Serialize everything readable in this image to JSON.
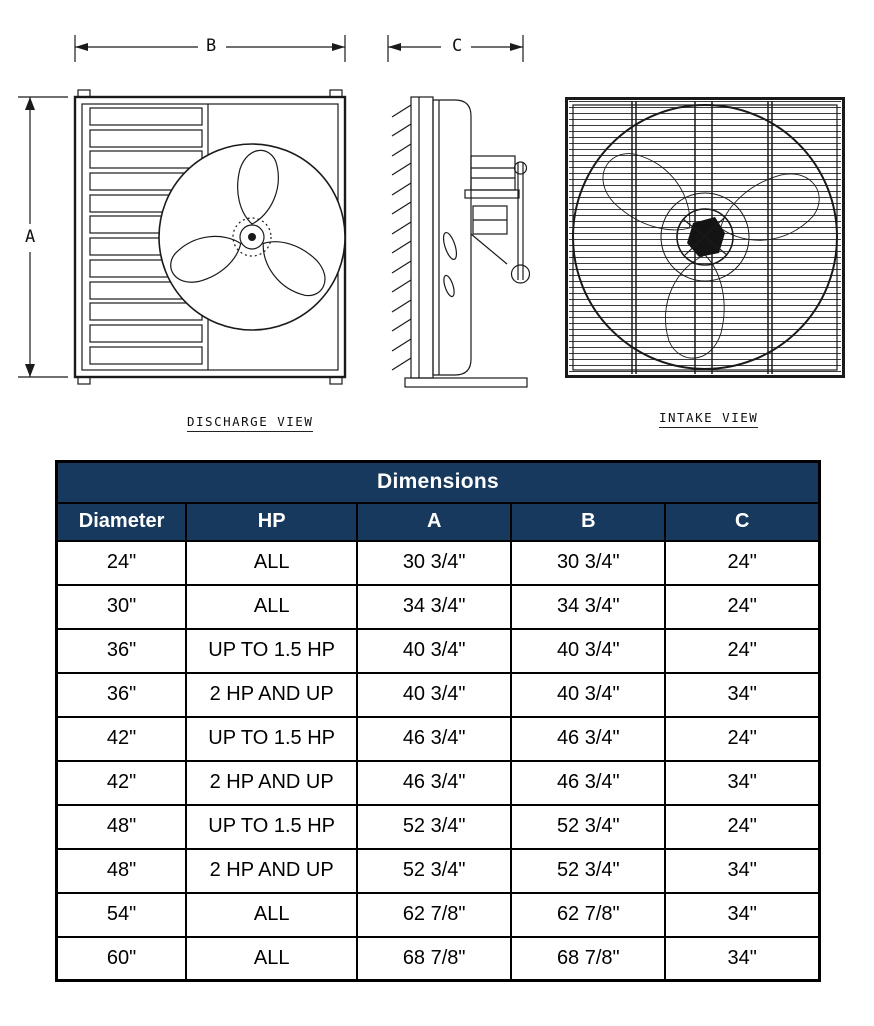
{
  "colors": {
    "header_bg": "#17395e",
    "header_text": "#ffffff",
    "border": "#000000",
    "line": "#1a1a1a"
  },
  "drawings": {
    "discharge": {
      "caption": "DISCHARGE VIEW",
      "dim_a": "A",
      "dim_b": "B"
    },
    "side": {
      "dim_c": "C"
    },
    "intake": {
      "caption": "INTAKE VIEW"
    }
  },
  "table": {
    "title": "Dimensions",
    "columns": [
      "Diameter",
      "HP",
      "A",
      "B",
      "C"
    ],
    "rows": [
      [
        "24\"",
        "ALL",
        "30 3/4\"",
        "30 3/4\"",
        "24\""
      ],
      [
        "30\"",
        "ALL",
        "34 3/4\"",
        "34 3/4\"",
        "24\""
      ],
      [
        "36\"",
        "UP TO 1.5 HP",
        "40 3/4\"",
        "40 3/4\"",
        "24\""
      ],
      [
        "36\"",
        "2 HP AND UP",
        "40 3/4\"",
        "40 3/4\"",
        "34\""
      ],
      [
        "42\"",
        "UP TO 1.5 HP",
        "46 3/4\"",
        "46 3/4\"",
        "24\""
      ],
      [
        "42\"",
        "2 HP AND UP",
        "46 3/4\"",
        "46 3/4\"",
        "34\""
      ],
      [
        "48\"",
        "UP TO 1.5 HP",
        "52 3/4\"",
        "52 3/4\"",
        "24\""
      ],
      [
        "48\"",
        "2 HP AND UP",
        "52 3/4\"",
        "52 3/4\"",
        "34\""
      ],
      [
        "54\"",
        "ALL",
        "62 7/8\"",
        "62 7/8\"",
        "34\""
      ],
      [
        "60\"",
        "ALL",
        "68 7/8\"",
        "68 7/8\"",
        "34\""
      ]
    ]
  }
}
